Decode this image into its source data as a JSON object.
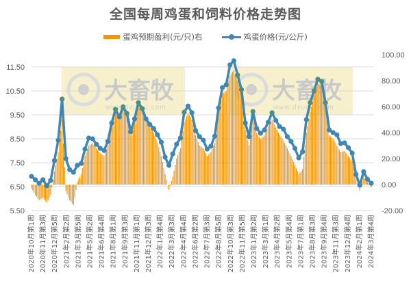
{
  "title": "全国每周鸡蛋和饲料价格走势图",
  "legend": {
    "bar_label": "蛋鸡预期盈利(元/只)右",
    "line_label": "鸡蛋价格(元/公斤)"
  },
  "colors": {
    "bar": "#f0960f",
    "line": "#3f86b4",
    "line_highlight": "#4e8f7e",
    "grid": "#d9d9d9",
    "watermark_bg": "#f5eec3",
    "text": "#595959"
  },
  "watermark": {
    "brand": "大畜牧",
    "url": "www.dxumu.com"
  },
  "chart_data": {
    "type": "bar+line",
    "title": "全国每周鸡蛋和饲料价格走势图",
    "xlabel": "",
    "ylabel_left": "鸡蛋价格(元/公斤)",
    "ylabel_right": "蛋鸡预期盈利(元/只)",
    "ylim_left": [
      5.5,
      11.5
    ],
    "yticks_left": [
      "11.50",
      "10.50",
      "9.50",
      "8.50",
      "7.50",
      "6.50",
      "5.50"
    ],
    "ylim_right": [
      -20,
      100
    ],
    "yticks_right": [
      "100.00",
      "80.00",
      "60.00",
      "40.00",
      "20.00",
      "0.00",
      "-20.00"
    ],
    "grid": true,
    "legend_position": "top",
    "x_tick_labels": [
      "2020年10月第1周",
      "2020年11月第3周",
      "2020年12月第5周",
      "2021年2月第2周",
      "2021年3月第5周",
      "2021年5月第2周",
      "2021年6月第4周",
      "2021年8月第1周",
      "2021年9月第3周",
      "2021年11月第1周",
      "2021年12月第3周",
      "2022年1月第4周",
      "2022年3月第3周",
      "2022年4月第4周",
      "2022年6月第2周",
      "2022年7月第3周",
      "2022年8月第5周",
      "2022年10月第3周",
      "2022年11月第5周",
      "2023年1月第2周",
      "2023年3月第1周",
      "2023年4月第2周",
      "2023年5月第4周",
      "2023年7月第1周",
      "2023年8月第3周",
      "2023年9月第4周",
      "2023年11月第3周",
      "2023年12月第4周",
      "2024年2月第1周",
      "2024年3月第4周"
    ],
    "series": [
      {
        "name": "鸡蛋价格(元/公斤)",
        "type": "line",
        "axis": "left",
        "values": [
          6.93,
          6.79,
          6.64,
          6.79,
          6.53,
          6.76,
          7.59,
          8.44,
          10.16,
          7.67,
          7.21,
          7.1,
          7.39,
          7.47,
          8.07,
          8.53,
          8.5,
          8.27,
          8.1,
          8.01,
          8.39,
          9.16,
          9.73,
          9.41,
          9.84,
          9.56,
          8.79,
          9.33,
          10.01,
          9.76,
          9.33,
          9.1,
          8.93,
          8.67,
          8.36,
          7.73,
          7.39,
          7.87,
          8.27,
          8.53,
          9.61,
          9.87,
          9.59,
          8.84,
          8.59,
          8.44,
          8.07,
          8.19,
          8.61,
          9.79,
          10.64,
          10.76,
          11.59,
          11.76,
          11.16,
          10.56,
          9.16,
          8.59,
          9.64,
          8.93,
          8.73,
          8.87,
          9.19,
          9.59,
          9.27,
          9.01,
          8.9,
          8.59,
          8.39,
          8.1,
          7.7,
          7.96,
          9.3,
          10.01,
          10.5,
          10.99,
          10.9,
          10.01,
          8.87,
          8.76,
          8.67,
          8.3,
          8.33,
          8.13,
          7.9,
          7.01,
          6.56,
          7.13,
          6.81,
          6.64
        ]
      },
      {
        "name": "蛋鸡预期盈利(元/只)右",
        "type": "bar",
        "axis": "right",
        "values": [
          -3,
          -8,
          -12,
          -10,
          -14,
          -8,
          10,
          25,
          50,
          -5,
          -12,
          -16,
          2,
          8,
          22,
          30,
          32,
          28,
          24,
          22,
          30,
          45,
          58,
          50,
          60,
          55,
          38,
          52,
          63,
          58,
          50,
          45,
          40,
          32,
          22,
          8,
          -4,
          6,
          20,
          28,
          48,
          55,
          50,
          38,
          30,
          28,
          22,
          25,
          32,
          55,
          70,
          72,
          84,
          88,
          80,
          70,
          42,
          30,
          52,
          40,
          35,
          38,
          45,
          50,
          44,
          38,
          34,
          28,
          22,
          15,
          8,
          12,
          40,
          56,
          68,
          78,
          76,
          60,
          38,
          35,
          30,
          25,
          26,
          22,
          18,
          4,
          -5,
          6,
          2,
          -2
        ]
      }
    ]
  }
}
